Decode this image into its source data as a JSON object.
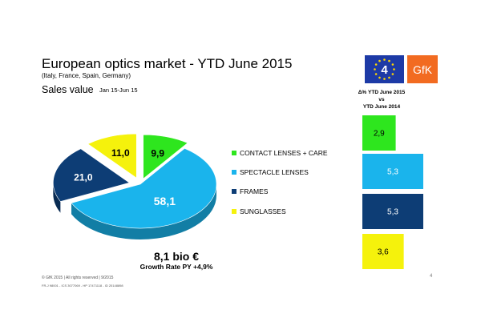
{
  "header": {
    "title": "European optics market - YTD June 2015",
    "subtitle": "(Italy, France, Spain, Germany)",
    "metric": "Sales value",
    "period": "Jan 15-Jun 15",
    "delta_heading_1": "Δ% YTD June 2015",
    "delta_heading_2": "vs",
    "delta_heading_3": "YTD June 2014"
  },
  "logos": {
    "eu_number": "4",
    "gfk_text": "GfK"
  },
  "summary": {
    "total": "8,1 bio €",
    "growth": "Growth Rate PY +4,9%"
  },
  "footer": {
    "line1": "© GfK 2015 | All rights reserved | 9/2015",
    "line2": "FR-J 98001 - ICS 3077069 - HP 17471118 - ID 20148898",
    "page": "4"
  },
  "chart_data": [
    {
      "type": "pie",
      "title": "",
      "categories": [
        "CONTACT LENSES + CARE",
        "SPECTACLE LENSES",
        "FRAMES",
        "SUNGLASSES"
      ],
      "values": [
        9.9,
        58.1,
        21.0,
        11.0
      ],
      "value_labels": [
        "9,9",
        "58,1",
        "21,0",
        "11,0"
      ],
      "colors": [
        "#2ee61e",
        "#1ab4ec",
        "#0d3d75",
        "#f5f20c"
      ],
      "legend": "right"
    },
    {
      "type": "bar",
      "orientation": "vertical-stack",
      "categories": [
        "CONTACT LENSES + CARE",
        "SPECTACLE LENSES",
        "FRAMES",
        "SUNGLASSES"
      ],
      "values": [
        2.9,
        5.3,
        5.3,
        3.6
      ],
      "value_labels": [
        "2,9",
        "5,3",
        "5,3",
        "3,6"
      ],
      "colors": [
        "#2ee61e",
        "#1ab4ec",
        "#0d3d75",
        "#f5f20c"
      ]
    }
  ]
}
